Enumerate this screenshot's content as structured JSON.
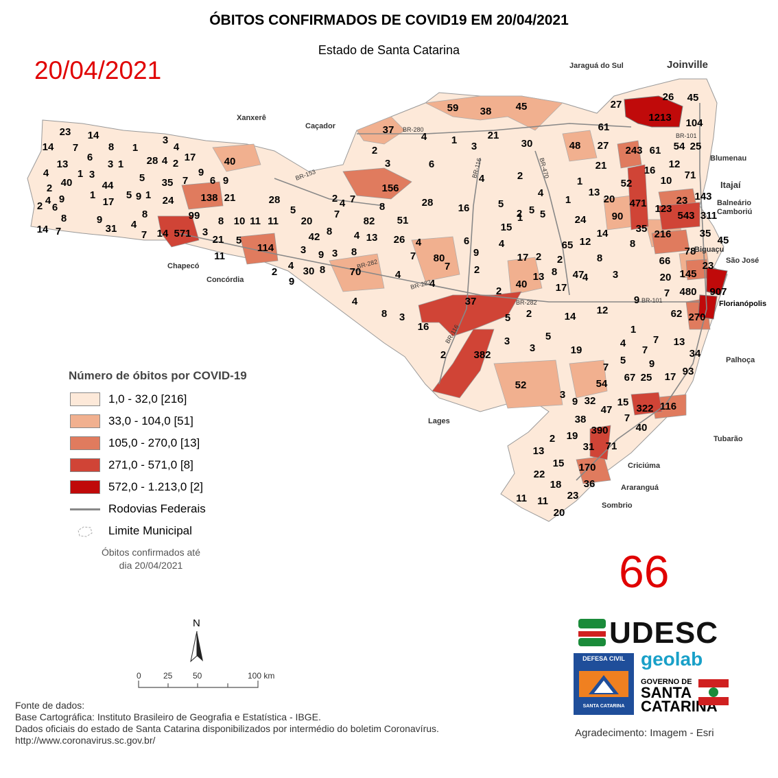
{
  "header": {
    "title": "ÓBITOS CONFIRMADOS DE COVID19 EM 20/04/2021",
    "subtitle": "Estado de Santa Catarina",
    "date_overlay": "20/04/2021",
    "count_overlay": "66"
  },
  "legend": {
    "title": "Número de óbitos por COVID-19",
    "classes": [
      {
        "label": "1,0 - 32,0 [216]",
        "color": "#fde9d9"
      },
      {
        "label": "33,0 - 104,0 [51]",
        "color": "#f1b08f"
      },
      {
        "label": "105,0 - 270,0 [13]",
        "color": "#e07b5e"
      },
      {
        "label": "271,0 - 571,0 [8]",
        "color": "#d04436"
      },
      {
        "label": "572,0 - 1.213,0 [2]",
        "color": "#c00a0a"
      }
    ],
    "roads_label": "Rodovias Federais",
    "boundary_label": "Limite Municipal",
    "note_line1": "Óbitos confirmados até",
    "note_line2": "dia 20/04/2021"
  },
  "scale": {
    "north": "N",
    "ticks": [
      "0",
      "25",
      "50",
      "100 km"
    ]
  },
  "places": {
    "joinville": "Joinville",
    "jaragua": "Jaraguá do Sul",
    "blumenau": "Blumenau",
    "itajai": "Itajaí",
    "balneario": "Balneário Camboriú",
    "biguacu": "Biguaçu",
    "sao_jose": "São José",
    "florianopolis": "Florianópolis",
    "palhoca": "Palhoça",
    "tubarao": "Tubarão",
    "criciuma": "Criciúma",
    "ararangua": "Araranguá",
    "sombrio": "Sombrio",
    "lages": "Lages",
    "cacador": "Caçador",
    "xanxere": "Xanxerê",
    "chapeco": "Chapecó",
    "concordia": "Concórdia"
  },
  "roads": [
    "BR-280",
    "BR-116",
    "BR-470",
    "BR-153",
    "BR-282",
    "BR-282",
    "BR-282",
    "BR-116",
    "BR-101",
    "BR-101"
  ],
  "values": [
    "23",
    "14",
    "14",
    "7",
    "8",
    "1",
    "3",
    "4",
    "13",
    "6",
    "3",
    "4",
    "1",
    "28",
    "2",
    "17",
    "4",
    "40",
    "1",
    "3",
    "44",
    "5",
    "35",
    "7",
    "2",
    "4",
    "9",
    "1",
    "17",
    "5",
    "9",
    "1",
    "24",
    "2",
    "6",
    "8",
    "9",
    "31",
    "4",
    "7",
    "14",
    "7",
    "40",
    "9",
    "6",
    "9",
    "138",
    "21",
    "8",
    "99",
    "571",
    "3",
    "21",
    "14",
    "8",
    "5",
    "10",
    "11",
    "28",
    "5",
    "11",
    "20",
    "42",
    "8",
    "114",
    "11",
    "30",
    "8",
    "4",
    "9",
    "2",
    "3",
    "70",
    "156",
    "8",
    "82",
    "51",
    "7",
    "7",
    "13",
    "26",
    "4",
    "37",
    "2",
    "3",
    "4",
    "6",
    "59",
    "38",
    "45",
    "1",
    "3",
    "21",
    "30",
    "61",
    "27",
    "1213",
    "26",
    "45",
    "104",
    "54",
    "25",
    "243",
    "61",
    "48",
    "27",
    "21",
    "16",
    "12",
    "71",
    "10",
    "52",
    "471",
    "123",
    "23",
    "143",
    "543",
    "311",
    "35",
    "216",
    "35",
    "45",
    "78",
    "23",
    "145",
    "907",
    "480",
    "270",
    "62",
    "8",
    "7",
    "66",
    "20",
    "90",
    "20",
    "13",
    "14",
    "12",
    "65",
    "47",
    "17",
    "13",
    "8",
    "80",
    "9",
    "4",
    "17",
    "40",
    "37",
    "2",
    "4",
    "8",
    "3",
    "16",
    "2",
    "382",
    "3",
    "3",
    "5",
    "14",
    "19",
    "7",
    "5",
    "9",
    "25",
    "17",
    "93",
    "34",
    "13",
    "7",
    "4",
    "1",
    "54",
    "67",
    "3",
    "9",
    "32",
    "15",
    "47",
    "38",
    "7",
    "322",
    "116",
    "40",
    "390",
    "31",
    "71",
    "19",
    "2",
    "13",
    "15",
    "170",
    "22",
    "18",
    "36",
    "23",
    "11",
    "11",
    "20",
    "52",
    "28",
    "16",
    "5",
    "15",
    "2",
    "5",
    "4",
    "1",
    "24",
    "4",
    "12",
    "6",
    "2",
    "1",
    "5",
    "2",
    "1",
    "4",
    "2",
    "3",
    "8",
    "9",
    "4",
    "4",
    "7",
    "7",
    "4",
    "4",
    "2",
    "2",
    "8",
    "3",
    "9",
    "2",
    "5",
    "7",
    "9"
  ],
  "sources": {
    "line1": "Fonte de dados:",
    "line2": "Base Cartográfica: Instituto Brasileiro de Geografia e Estatística - IBGE.",
    "line3": "Dados oficiais do estado de Santa Catarina disponibilizados por intermédio do boletim Coronavírus.",
    "line4": "http://www.coronavirus.sc.gov.br/"
  },
  "logos": {
    "udesc": "UDESC",
    "geolab": "geolab",
    "defesa_top": "DEFESA CIVIL",
    "defesa_bottom": "SANTA CATARINA",
    "gov_top": "GOVERNO DE",
    "gov_line1": "SANTA",
    "gov_line2": "CATARINA"
  },
  "credit": "Agradecimento: Imagem - Esri"
}
